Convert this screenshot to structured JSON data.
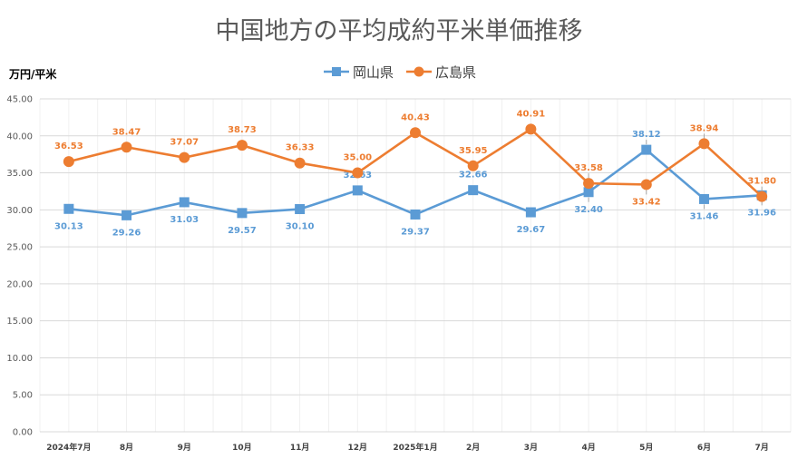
{
  "chart_data": {
    "type": "line",
    "title": "中国地方の平均成約平米単価推移",
    "ylabel": "万円/平米",
    "xlabel": "",
    "ylim": [
      0,
      45
    ],
    "yticks": [
      "0.00",
      "5.00",
      "10.00",
      "15.00",
      "20.00",
      "25.00",
      "30.00",
      "35.00",
      "40.00",
      "45.00"
    ],
    "grid": true,
    "legend_position": "top",
    "categories": [
      "2024年7月",
      "8月",
      "9月",
      "10月",
      "11月",
      "12月",
      "2025年1月",
      "2月",
      "3月",
      "4月",
      "5月",
      "6月",
      "7月"
    ],
    "series": [
      {
        "name": "岡山県",
        "marker": "square",
        "color": "#5B9BD5",
        "values": [
          30.13,
          29.26,
          31.03,
          29.57,
          30.1,
          32.63,
          29.37,
          32.66,
          29.67,
          32.4,
          38.12,
          31.46,
          31.96
        ],
        "labels": [
          "30.13",
          "29.26",
          "31.03",
          "29.57",
          "30.10",
          "32.63",
          "29.37",
          "32.66",
          "29.67",
          "32.40",
          "38.12",
          "31.46",
          "31.96"
        ],
        "label_side": [
          "below",
          "below",
          "below",
          "below",
          "below",
          "above",
          "below",
          "above",
          "below",
          "below",
          "above",
          "below",
          "below"
        ]
      },
      {
        "name": "広島県",
        "marker": "circle",
        "color": "#ED7D31",
        "values": [
          36.53,
          38.47,
          37.07,
          38.73,
          36.33,
          35.0,
          40.43,
          35.95,
          40.91,
          33.58,
          33.42,
          38.94,
          31.8
        ],
        "labels": [
          "36.53",
          "38.47",
          "37.07",
          "38.73",
          "36.33",
          "35.00",
          "40.43",
          "35.95",
          "40.91",
          "33.58",
          "33.42",
          "38.94",
          "31.80"
        ],
        "label_side": [
          "above",
          "above",
          "above",
          "above",
          "above",
          "above",
          "above",
          "above",
          "above",
          "above",
          "below",
          "above",
          "above"
        ]
      }
    ]
  }
}
